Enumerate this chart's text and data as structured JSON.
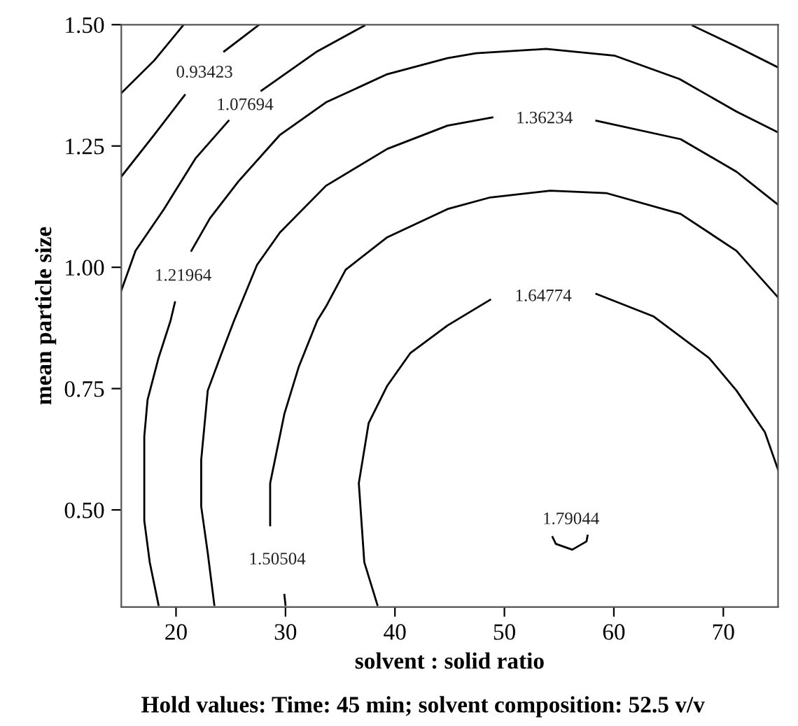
{
  "chart_data": {
    "type": "line",
    "xlabel": "solvent : solid ratio",
    "ylabel": "mean particle size",
    "xlim": [
      15,
      75
    ],
    "ylim": [
      0.3,
      1.5
    ],
    "xticks": [
      20,
      30,
      40,
      50,
      60,
      70
    ],
    "yticks": [
      {
        "value": 0.5,
        "label": "0.50"
      },
      {
        "value": 0.75,
        "label": "0.75"
      },
      {
        "value": 1.0,
        "label": "1.00"
      },
      {
        "value": 1.25,
        "label": "1.25"
      },
      {
        "value": 1.5,
        "label": "1.50"
      }
    ],
    "annotations": [
      "Hold values: Time: 45 min; solvent composition: 52.5 v/v"
    ],
    "series": [
      {
        "color": "#000000",
        "x": [
          15.0,
          18.0,
          20.7
        ],
        "values": [
          1.359,
          1.426,
          1.5
        ]
      },
      {
        "name": "0.93423",
        "color": "#000000",
        "x": [
          15.0,
          18.0,
          20.8,
          22.6,
          24.4,
          27.6
        ],
        "values": [
          1.187,
          1.273,
          1.355,
          null,
          1.445,
          1.5
        ]
      },
      {
        "name": "1.07694",
        "color": "#000000",
        "x": [
          37.2,
          32.9,
          27.8,
          26.3,
          24.8,
          21.8,
          18.9,
          16.3,
          15.0
        ],
        "values": [
          1.498,
          1.445,
          1.364,
          null,
          1.302,
          1.225,
          1.12,
          1.034,
          0.952
        ]
      },
      {
        "color": "#000000",
        "x": [
          67.2,
          71.2,
          75.0
        ],
        "values": [
          1.498,
          1.455,
          1.412
        ]
      },
      {
        "name": "1.21964",
        "color": "#000000",
        "x": [
          75.0,
          71.2,
          66.0,
          60.1,
          53.8,
          47.4,
          44.8,
          39.3,
          33.7,
          29.5,
          25.7,
          23.1,
          21.4,
          20.65,
          19.9,
          19.5,
          18.4,
          17.4,
          17.1,
          17.1,
          17.6,
          18.4
        ],
        "values": [
          1.278,
          1.321,
          1.388,
          1.436,
          1.45,
          1.441,
          1.431,
          1.398,
          1.34,
          1.273,
          1.177,
          1.101,
          1.034,
          null,
          0.928,
          0.89,
          0.813,
          0.727,
          0.651,
          0.478,
          0.392,
          0.304
        ]
      },
      {
        "name": "1.36234",
        "color": "#000000",
        "x": [
          75.0,
          71.2,
          66.1,
          58.4,
          53.65,
          48.9,
          44.8,
          39.3,
          33.7,
          29.5,
          27.4,
          25.3,
          24.0,
          22.9,
          22.3,
          22.3,
          22.9,
          23.5
        ],
        "values": [
          1.129,
          1.197,
          1.264,
          1.302,
          null,
          1.309,
          1.292,
          1.244,
          1.168,
          1.072,
          1.005,
          0.89,
          0.813,
          0.746,
          0.603,
          0.507,
          0.411,
          0.304
        ]
      },
      {
        "name": "1.50504",
        "color": "#000000",
        "x": [
          75.0,
          71.2,
          66.1,
          59.3,
          54.2,
          48.7,
          44.8,
          39.3,
          35.5,
          33.7,
          32.9,
          31.2,
          29.9,
          28.6,
          28.6,
          29.25,
          29.9,
          30.0
        ],
        "values": [
          0.938,
          1.034,
          1.11,
          1.153,
          1.158,
          1.144,
          1.12,
          1.062,
          0.995,
          0.919,
          0.89,
          0.794,
          0.698,
          0.555,
          0.468,
          null,
          0.325,
          0.304
        ]
      },
      {
        "name": "1.64774",
        "color": "#000000",
        "x": [
          75.0,
          73.8,
          71.2,
          68.7,
          63.6,
          58.4,
          53.55,
          48.7,
          44.8,
          41.4,
          39.3,
          37.6,
          36.7,
          37.2,
          38.4
        ],
        "values": [
          0.583,
          0.66,
          0.746,
          0.813,
          0.899,
          0.945,
          null,
          0.933,
          0.88,
          0.823,
          0.756,
          0.679,
          0.555,
          0.392,
          0.304
        ]
      },
      {
        "name": "1.79044",
        "color": "#000000",
        "x": [
          54.4,
          54.7,
          56.2,
          57.5,
          57.6
        ],
        "values": [
          0.444,
          0.43,
          0.418,
          0.435,
          0.447
        ]
      }
    ]
  }
}
